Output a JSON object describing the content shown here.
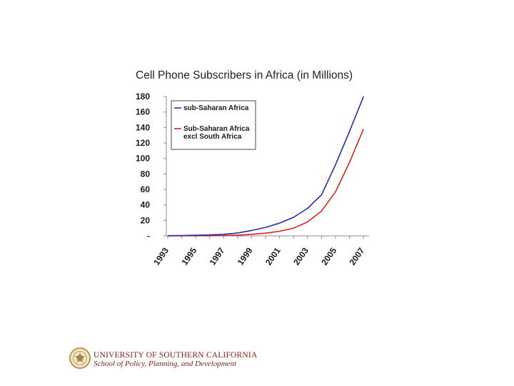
{
  "chart_data": {
    "type": "line",
    "title": "Cell Phone Subscribers in Africa (in Millions)",
    "xlabel": "",
    "ylabel": "",
    "x": [
      1993,
      1994,
      1995,
      1996,
      1997,
      1998,
      1999,
      2000,
      2001,
      2002,
      2003,
      2004,
      2005,
      2006,
      2007
    ],
    "x_tick_labels": [
      "1993",
      "1995",
      "1997",
      "1999",
      "2001",
      "2003",
      "2005",
      "2007"
    ],
    "x_tick_values": [
      1993,
      1995,
      1997,
      1999,
      2001,
      2003,
      2005,
      2007
    ],
    "y_tick_labels": [
      "-",
      "20",
      "40",
      "60",
      "80",
      "100",
      "120",
      "140",
      "160",
      "180"
    ],
    "y_tick_values": [
      0,
      20,
      40,
      60,
      80,
      100,
      120,
      140,
      160,
      180
    ],
    "ylim": [
      0,
      180
    ],
    "xlim": [
      1992.9,
      2007.4
    ],
    "legend_position": "top-left",
    "series": [
      {
        "name": "sub-Saharan Africa",
        "legend_lines": [
          "sub-Saharan Africa"
        ],
        "color": "#1f2fb0",
        "values": [
          0.3,
          0.5,
          0.8,
          1.2,
          2.0,
          3.8,
          7.0,
          11.0,
          16.5,
          24.0,
          35.5,
          53.0,
          92.0,
          135.0,
          180.0
        ]
      },
      {
        "name": "Sub-Saharan Africa excl South Africa",
        "legend_lines": [
          "Sub-Saharan Africa",
          "excl South Africa"
        ],
        "color": "#e02020",
        "values": [
          0.1,
          0.15,
          0.2,
          0.3,
          0.5,
          1.0,
          2.0,
          3.5,
          6.0,
          10.0,
          18.0,
          32.0,
          57.0,
          95.0,
          138.0
        ]
      }
    ]
  },
  "footer": {
    "university": "UNIVERSITY OF SOUTHERN CALIFORNIA",
    "school": "School of Policy, Planning, and Development"
  },
  "colors": {
    "axis": "#8c8c8c",
    "seal": "#b8964a"
  }
}
